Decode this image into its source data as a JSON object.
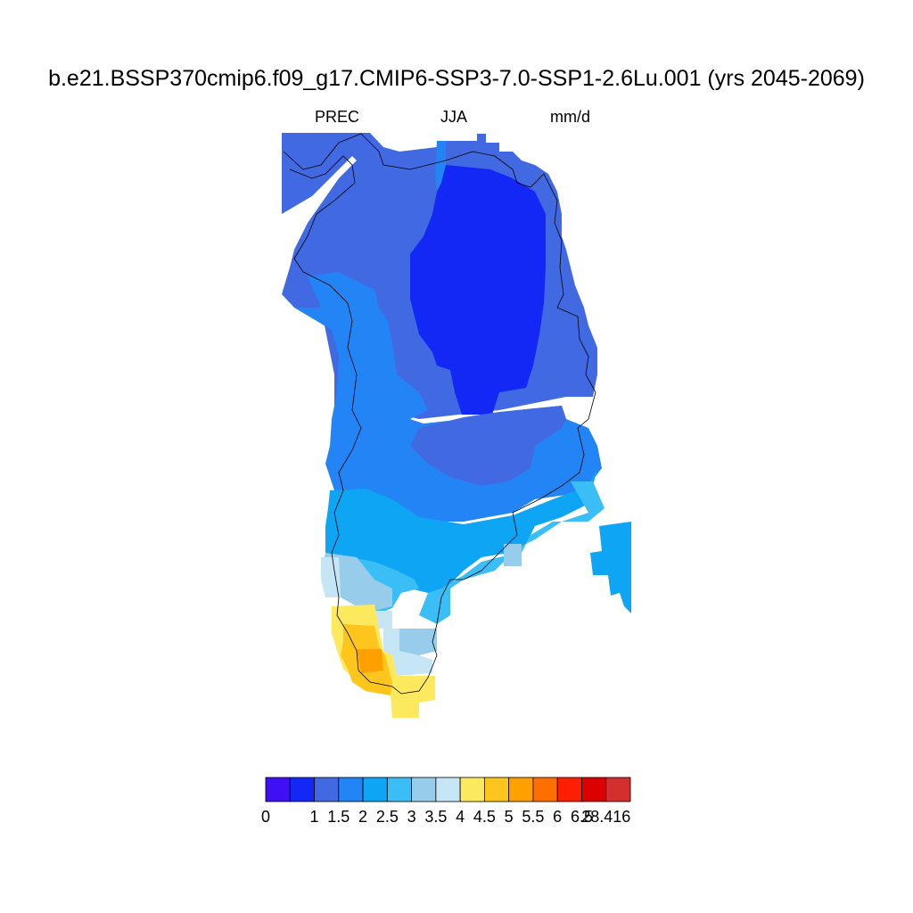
{
  "title": "b.e21.BSSP370cmip6.f09_g17.CMIP6-SSP3-7.0-SSP1-2.6Lu.001 (yrs 2045-2069)",
  "variable": "PREC",
  "season": "JJA",
  "units": "mm/d",
  "colorbar": {
    "colors": [
      "#4010f5",
      "#1428f5",
      "#4169e1",
      "#2384f5",
      "#0ea5f5",
      "#3bbdf5",
      "#97cdeb",
      "#c6e5f5",
      "#fde95e",
      "#fec51c",
      "#fea000",
      "#fe6e00",
      "#fe1e00",
      "#dc0000",
      "#d42f2f"
    ],
    "tick_labels": [
      "0",
      "1",
      "1.5",
      "2",
      "2.5",
      "3",
      "3.5",
      "4",
      "4.5",
      "5",
      "5.5",
      "6",
      "6.5",
      "28.416"
    ]
  },
  "map_regions": [
    {
      "region": "interior ice sheet",
      "color": "#1428f5"
    },
    {
      "region": "north and west margin",
      "color": "#4169e1"
    },
    {
      "region": "central west coast",
      "color": "#2384f5"
    },
    {
      "region": "southern interior",
      "color": "#0ea5f5"
    },
    {
      "region": "south-east coast",
      "color": "#3bbdf5"
    },
    {
      "region": "southern tip",
      "color": "#97cdeb"
    },
    {
      "region": "southern tip",
      "color": "#c6e5f5"
    },
    {
      "region": "southern tip",
      "color": "#fde95e"
    },
    {
      "region": "southern tip",
      "color": "#fec51c"
    },
    {
      "region": "southern tip",
      "color": "#fea000"
    }
  ]
}
